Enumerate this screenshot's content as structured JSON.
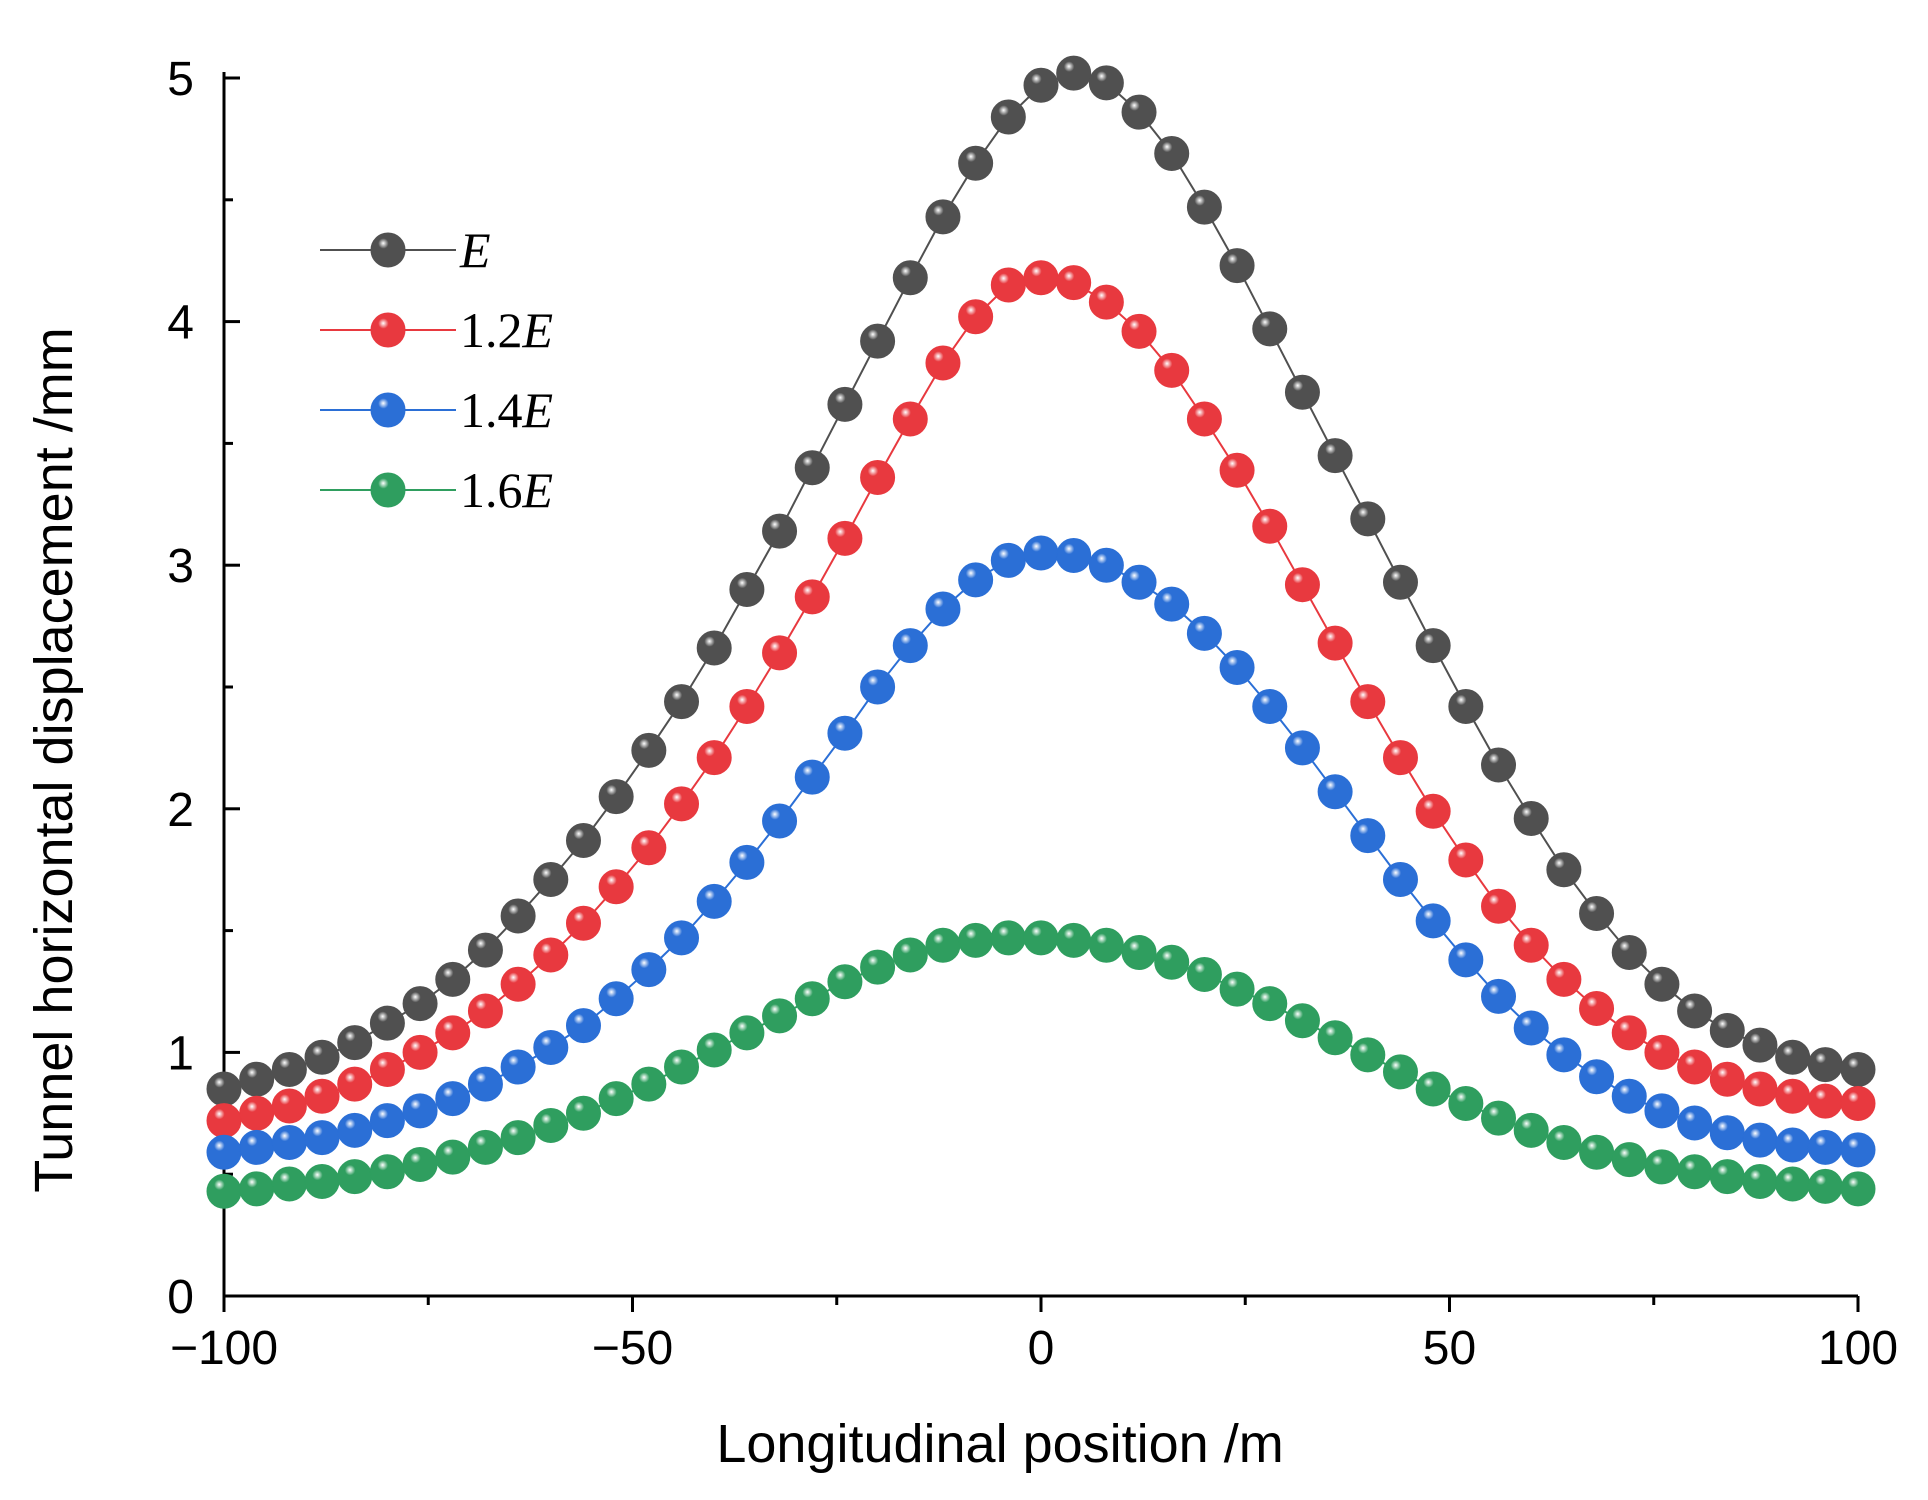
{
  "chart_data": {
    "type": "line",
    "xlabel": "Longitudinal position /m",
    "ylabel": "Tunnel horizontal displacement /mm",
    "xlim": [
      -100,
      100
    ],
    "ylim": [
      0,
      5
    ],
    "xticks": [
      -100,
      -50,
      0,
      50,
      100
    ],
    "yticks": [
      0,
      1,
      2,
      3,
      4,
      5
    ],
    "x_tick_labels": [
      "−100",
      "−50",
      "0",
      "50",
      "100"
    ],
    "y_tick_labels": [
      "0",
      "1",
      "2",
      "3",
      "4",
      "5"
    ],
    "grid": false,
    "legend": "upper-left",
    "x": [
      -100,
      -96,
      -92,
      -88,
      -84,
      -80,
      -76,
      -72,
      -68,
      -64,
      -60,
      -56,
      -52,
      -48,
      -44,
      -40,
      -36,
      -32,
      -28,
      -24,
      -20,
      -16,
      -12,
      -8,
      -4,
      0,
      4,
      8,
      12,
      16,
      20,
      24,
      28,
      32,
      36,
      40,
      44,
      48,
      52,
      56,
      60,
      64,
      68,
      72,
      76,
      80,
      84,
      88,
      92,
      96,
      100
    ],
    "series": [
      {
        "name": "E",
        "legend_prefix": "",
        "legend_italic": "E",
        "color": "#505050",
        "values": [
          0.85,
          0.89,
          0.93,
          0.98,
          1.04,
          1.12,
          1.2,
          1.3,
          1.42,
          1.56,
          1.71,
          1.87,
          2.05,
          2.24,
          2.44,
          2.66,
          2.9,
          3.14,
          3.4,
          3.66,
          3.92,
          4.18,
          4.43,
          4.65,
          4.84,
          4.97,
          5.02,
          4.98,
          4.86,
          4.69,
          4.47,
          4.23,
          3.97,
          3.71,
          3.45,
          3.19,
          2.93,
          2.67,
          2.42,
          2.18,
          1.96,
          1.75,
          1.57,
          1.41,
          1.28,
          1.17,
          1.09,
          1.03,
          0.98,
          0.95,
          0.93
        ]
      },
      {
        "name": "1.2E",
        "legend_prefix": "1.2",
        "legend_italic": "E",
        "color": "#e8393f",
        "values": [
          0.72,
          0.75,
          0.78,
          0.82,
          0.87,
          0.93,
          1.0,
          1.08,
          1.17,
          1.28,
          1.4,
          1.53,
          1.68,
          1.84,
          2.02,
          2.21,
          2.42,
          2.64,
          2.87,
          3.11,
          3.36,
          3.6,
          3.83,
          4.02,
          4.15,
          4.18,
          4.16,
          4.08,
          3.96,
          3.8,
          3.6,
          3.39,
          3.16,
          2.92,
          2.68,
          2.44,
          2.21,
          1.99,
          1.79,
          1.6,
          1.44,
          1.3,
          1.18,
          1.08,
          1.0,
          0.94,
          0.89,
          0.85,
          0.82,
          0.8,
          0.79
        ]
      },
      {
        "name": "1.4E",
        "legend_prefix": "1.4",
        "legend_italic": "E",
        "color": "#2b6fd6",
        "values": [
          0.59,
          0.61,
          0.63,
          0.65,
          0.68,
          0.72,
          0.76,
          0.81,
          0.87,
          0.94,
          1.02,
          1.11,
          1.22,
          1.34,
          1.47,
          1.62,
          1.78,
          1.95,
          2.13,
          2.31,
          2.5,
          2.67,
          2.82,
          2.94,
          3.02,
          3.05,
          3.04,
          3.0,
          2.93,
          2.84,
          2.72,
          2.58,
          2.42,
          2.25,
          2.07,
          1.89,
          1.71,
          1.54,
          1.38,
          1.23,
          1.1,
          0.99,
          0.9,
          0.82,
          0.76,
          0.71,
          0.67,
          0.64,
          0.62,
          0.61,
          0.6
        ]
      },
      {
        "name": "1.6E",
        "legend_prefix": "1.6",
        "legend_italic": "E",
        "color": "#2f9e5f",
        "values": [
          0.43,
          0.44,
          0.46,
          0.47,
          0.49,
          0.51,
          0.54,
          0.57,
          0.61,
          0.65,
          0.7,
          0.75,
          0.81,
          0.87,
          0.94,
          1.01,
          1.08,
          1.15,
          1.22,
          1.29,
          1.35,
          1.4,
          1.44,
          1.46,
          1.47,
          1.47,
          1.46,
          1.44,
          1.41,
          1.37,
          1.32,
          1.26,
          1.2,
          1.13,
          1.06,
          0.99,
          0.92,
          0.85,
          0.79,
          0.73,
          0.68,
          0.63,
          0.59,
          0.56,
          0.53,
          0.51,
          0.49,
          0.47,
          0.46,
          0.45,
          0.44
        ]
      }
    ]
  }
}
